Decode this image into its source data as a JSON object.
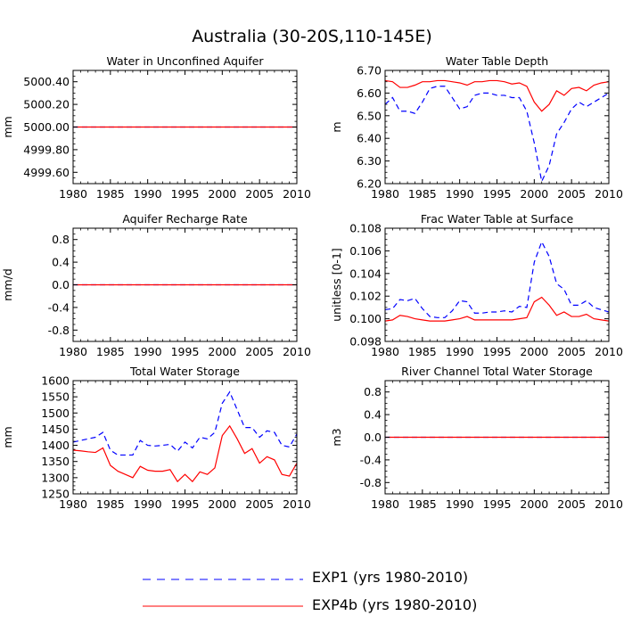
{
  "title": "Australia (30-20S,110-145E)",
  "legend": [
    {
      "label": "EXP1 (yrs 1980-2010)",
      "color": "#0000ff",
      "dash": "dashed"
    },
    {
      "label": "EXP4b (yrs 1980-2010)",
      "color": "#ff0000",
      "dash": "solid"
    }
  ],
  "chart_data": [
    {
      "type": "line",
      "title": "Water in Unconfined Aquifer",
      "xlabel": "",
      "ylabel": "mm",
      "xlim": [
        1980,
        2010
      ],
      "ylim": [
        4999.5,
        5000.5
      ],
      "xticks": [
        1980,
        1985,
        1990,
        1995,
        2000,
        2005,
        2010
      ],
      "yticks": [
        4999.6,
        4999.8,
        5000.0,
        5000.2,
        5000.4
      ],
      "ytick_labels": [
        "4999.60",
        "4999.80",
        "5000.00",
        "5000.20",
        "5000.40"
      ],
      "x": [
        1980,
        1981,
        1982,
        1983,
        1984,
        1985,
        1986,
        1987,
        1988,
        1989,
        1990,
        1991,
        1992,
        1993,
        1994,
        1995,
        1996,
        1997,
        1998,
        1999,
        2000,
        2001,
        2002,
        2003,
        2004,
        2005,
        2006,
        2007,
        2008,
        2009,
        2010
      ],
      "series": [
        {
          "name": "EXP1",
          "values": [
            5000,
            5000,
            5000,
            5000,
            5000,
            5000,
            5000,
            5000,
            5000,
            5000,
            5000,
            5000,
            5000,
            5000,
            5000,
            5000,
            5000,
            5000,
            5000,
            5000,
            5000,
            5000,
            5000,
            5000,
            5000,
            5000,
            5000,
            5000,
            5000,
            5000,
            5000
          ]
        },
        {
          "name": "EXP4b",
          "values": [
            5000,
            5000,
            5000,
            5000,
            5000,
            5000,
            5000,
            5000,
            5000,
            5000,
            5000,
            5000,
            5000,
            5000,
            5000,
            5000,
            5000,
            5000,
            5000,
            5000,
            5000,
            5000,
            5000,
            5000,
            5000,
            5000,
            5000,
            5000,
            5000,
            5000,
            5000
          ]
        }
      ]
    },
    {
      "type": "line",
      "title": "Water Table Depth",
      "xlabel": "",
      "ylabel": "m",
      "xlim": [
        1980,
        2010
      ],
      "ylim": [
        6.2,
        6.7
      ],
      "xticks": [
        1980,
        1985,
        1990,
        1995,
        2000,
        2005,
        2010
      ],
      "yticks": [
        6.2,
        6.3,
        6.4,
        6.5,
        6.6,
        6.7
      ],
      "ytick_labels": [
        "6.20",
        "6.30",
        "6.40",
        "6.50",
        "6.60",
        "6.70"
      ],
      "x": [
        1980,
        1981,
        1982,
        1983,
        1984,
        1985,
        1986,
        1987,
        1988,
        1989,
        1990,
        1991,
        1992,
        1993,
        1994,
        1995,
        1996,
        1997,
        1998,
        1999,
        2000,
        2001,
        2002,
        2003,
        2004,
        2005,
        2006,
        2007,
        2008,
        2009,
        2010
      ],
      "series": [
        {
          "name": "EXP1",
          "values": [
            6.55,
            6.58,
            6.52,
            6.52,
            6.51,
            6.56,
            6.62,
            6.63,
            6.63,
            6.58,
            6.53,
            6.54,
            6.59,
            6.6,
            6.6,
            6.59,
            6.59,
            6.58,
            6.58,
            6.52,
            6.38,
            6.21,
            6.28,
            6.42,
            6.47,
            6.53,
            6.56,
            6.54,
            6.56,
            6.58,
            6.6
          ]
        },
        {
          "name": "EXP4b",
          "values": [
            6.655,
            6.65,
            6.625,
            6.625,
            6.635,
            6.65,
            6.65,
            6.655,
            6.655,
            6.65,
            6.645,
            6.635,
            6.65,
            6.65,
            6.655,
            6.655,
            6.65,
            6.64,
            6.645,
            6.63,
            6.56,
            6.52,
            6.55,
            6.61,
            6.59,
            6.62,
            6.625,
            6.61,
            6.635,
            6.645,
            6.65
          ]
        }
      ]
    },
    {
      "type": "line",
      "title": "Aquifer Recharge Rate",
      "xlabel": "",
      "ylabel": "mm/d",
      "xlim": [
        1980,
        2010
      ],
      "ylim": [
        -1.0,
        1.0
      ],
      "xticks": [
        1980,
        1985,
        1990,
        1995,
        2000,
        2005,
        2010
      ],
      "yticks": [
        -0.8,
        -0.4,
        0.0,
        0.4,
        0.8
      ],
      "ytick_labels": [
        "-0.8",
        "-0.4",
        "0.0",
        "0.4",
        "0.8"
      ],
      "x": [
        1980,
        1981,
        1982,
        1983,
        1984,
        1985,
        1986,
        1987,
        1988,
        1989,
        1990,
        1991,
        1992,
        1993,
        1994,
        1995,
        1996,
        1997,
        1998,
        1999,
        2000,
        2001,
        2002,
        2003,
        2004,
        2005,
        2006,
        2007,
        2008,
        2009,
        2010
      ],
      "series": [
        {
          "name": "EXP1",
          "values": [
            0,
            0,
            0,
            0,
            0,
            0,
            0,
            0,
            0,
            0,
            0,
            0,
            0,
            0,
            0,
            0,
            0,
            0,
            0,
            0,
            0,
            0,
            0,
            0,
            0,
            0,
            0,
            0,
            0,
            0,
            0
          ]
        },
        {
          "name": "EXP4b",
          "values": [
            0,
            0,
            0,
            0,
            0,
            0,
            0,
            0,
            0,
            0,
            0,
            0,
            0,
            0,
            0,
            0,
            0,
            0,
            0,
            0,
            0,
            0,
            0,
            0,
            0,
            0,
            0,
            0,
            0,
            0,
            0
          ]
        }
      ]
    },
    {
      "type": "line",
      "title": "Frac Water Table at Surface",
      "xlabel": "",
      "ylabel": "unitless [0-1]",
      "xlim": [
        1980,
        2010
      ],
      "ylim": [
        0.098,
        0.108
      ],
      "xticks": [
        1980,
        1985,
        1990,
        1995,
        2000,
        2005,
        2010
      ],
      "yticks": [
        0.098,
        0.1,
        0.102,
        0.104,
        0.106,
        0.108
      ],
      "ytick_labels": [
        "0.098",
        "0.100",
        "0.102",
        "0.104",
        "0.106",
        "0.108"
      ],
      "x": [
        1980,
        1981,
        1982,
        1983,
        1984,
        1985,
        1986,
        1987,
        1988,
        1989,
        1990,
        1991,
        1992,
        1993,
        1994,
        1995,
        1996,
        1997,
        1998,
        1999,
        2000,
        2001,
        2002,
        2003,
        2004,
        2005,
        2006,
        2007,
        2008,
        2009,
        2010
      ],
      "series": [
        {
          "name": "EXP1",
          "values": [
            0.1008,
            0.1009,
            0.1017,
            0.1016,
            0.1018,
            0.1009,
            0.1002,
            0.1001,
            0.1001,
            0.1007,
            0.1016,
            0.1015,
            0.1005,
            0.1005,
            0.1006,
            0.1006,
            0.1007,
            0.1006,
            0.1011,
            0.101,
            0.105,
            0.1068,
            0.1055,
            0.1031,
            0.1026,
            0.1012,
            0.1012,
            0.1016,
            0.101,
            0.1008,
            0.1006
          ]
        },
        {
          "name": "EXP4b",
          "values": [
            0.0998,
            0.0999,
            0.1003,
            0.1002,
            0.1,
            0.0999,
            0.0998,
            0.0998,
            0.0998,
            0.0999,
            0.1,
            0.1002,
            0.0999,
            0.0999,
            0.0999,
            0.0999,
            0.0999,
            0.0999,
            0.1,
            0.1001,
            0.1015,
            0.1019,
            0.1012,
            0.1003,
            0.1006,
            0.1002,
            0.1002,
            0.1004,
            0.1,
            0.0999,
            0.0998
          ]
        }
      ]
    },
    {
      "type": "line",
      "title": "Total Water Storage",
      "xlabel": "",
      "ylabel": "mm",
      "xlim": [
        1980,
        2010
      ],
      "ylim": [
        1250,
        1600
      ],
      "xticks": [
        1980,
        1985,
        1990,
        1995,
        2000,
        2005,
        2010
      ],
      "yticks": [
        1250,
        1300,
        1350,
        1400,
        1450,
        1500,
        1550,
        1600
      ],
      "ytick_labels": [
        "1250",
        "1300",
        "1350",
        "1400",
        "1450",
        "1500",
        "1550",
        "1600"
      ],
      "x": [
        1980,
        1981,
        1982,
        1983,
        1984,
        1985,
        1986,
        1987,
        1988,
        1989,
        1990,
        1991,
        1992,
        1993,
        1994,
        1995,
        1996,
        1997,
        1998,
        1999,
        2000,
        2001,
        2002,
        2003,
        2004,
        2005,
        2006,
        2007,
        2008,
        2009,
        2010
      ],
      "series": [
        {
          "name": "EXP1",
          "values": [
            1410,
            1415,
            1420,
            1425,
            1440,
            1385,
            1370,
            1370,
            1370,
            1415,
            1400,
            1398,
            1400,
            1403,
            1382,
            1410,
            1392,
            1425,
            1420,
            1440,
            1530,
            1565,
            1510,
            1455,
            1455,
            1425,
            1445,
            1440,
            1400,
            1395,
            1435
          ]
        },
        {
          "name": "EXP4b",
          "values": [
            1385,
            1383,
            1380,
            1378,
            1392,
            1338,
            1320,
            1310,
            1300,
            1335,
            1323,
            1320,
            1320,
            1325,
            1288,
            1310,
            1288,
            1318,
            1310,
            1330,
            1430,
            1460,
            1420,
            1375,
            1390,
            1345,
            1365,
            1355,
            1310,
            1305,
            1345
          ]
        }
      ]
    },
    {
      "type": "line",
      "title": "River Channel Total Water Storage",
      "xlabel": "",
      "ylabel": "m3",
      "xlim": [
        1980,
        2010
      ],
      "ylim": [
        -1.0,
        1.0
      ],
      "xticks": [
        1980,
        1985,
        1990,
        1995,
        2000,
        2005,
        2010
      ],
      "yticks": [
        -0.8,
        -0.4,
        0.0,
        0.4,
        0.8
      ],
      "ytick_labels": [
        "-0.8",
        "-0.4",
        "0.0",
        "0.4",
        "0.8"
      ],
      "x": [
        1980,
        1981,
        1982,
        1983,
        1984,
        1985,
        1986,
        1987,
        1988,
        1989,
        1990,
        1991,
        1992,
        1993,
        1994,
        1995,
        1996,
        1997,
        1998,
        1999,
        2000,
        2001,
        2002,
        2003,
        2004,
        2005,
        2006,
        2007,
        2008,
        2009,
        2010
      ],
      "series": [
        {
          "name": "EXP1",
          "values": [
            0,
            0,
            0,
            0,
            0,
            0,
            0,
            0,
            0,
            0,
            0,
            0,
            0,
            0,
            0,
            0,
            0,
            0,
            0,
            0,
            0,
            0,
            0,
            0,
            0,
            0,
            0,
            0,
            0,
            0,
            0
          ]
        },
        {
          "name": "EXP4b",
          "values": [
            0,
            0,
            0,
            0,
            0,
            0,
            0,
            0,
            0,
            0,
            0,
            0,
            0,
            0,
            0,
            0,
            0,
            0,
            0,
            0,
            0,
            0,
            0,
            0,
            0,
            0,
            0,
            0,
            0,
            0,
            0
          ]
        }
      ]
    }
  ]
}
